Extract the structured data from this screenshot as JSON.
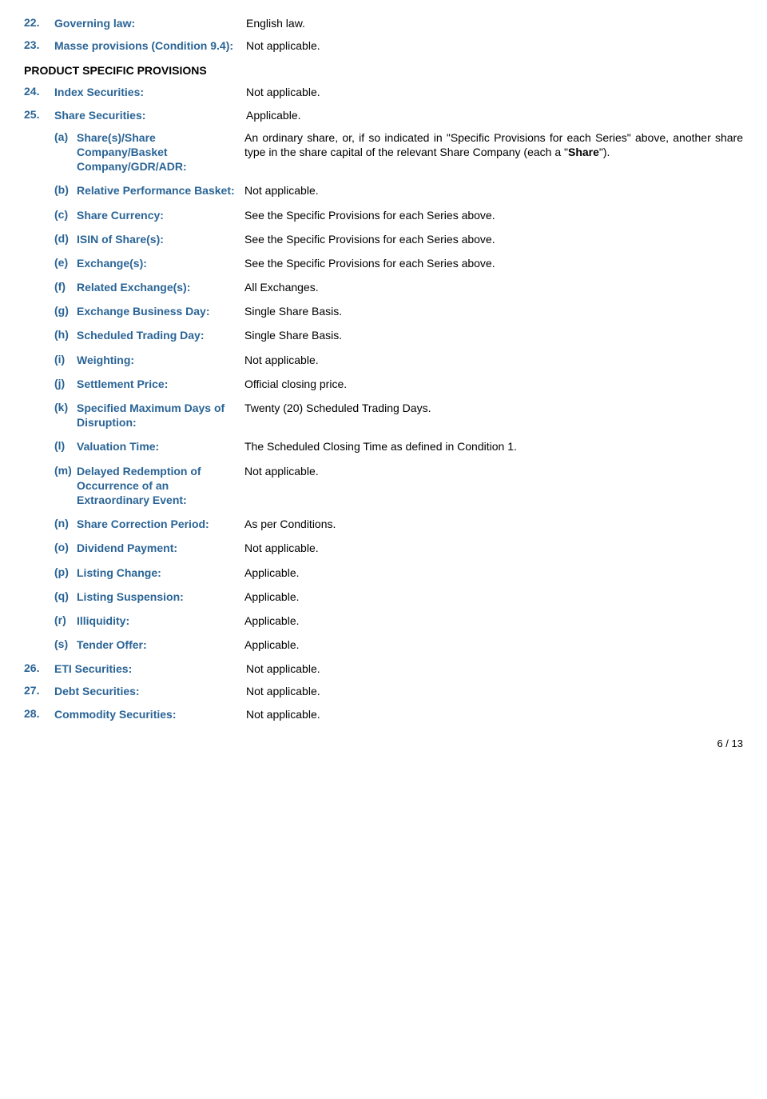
{
  "sectionHeader": "PRODUCT SPECIFIC PROVISIONS",
  "pageNumber": "6 / 13",
  "items": [
    {
      "num": "22.",
      "label": "Governing law:",
      "value": "English law."
    },
    {
      "num": "23.",
      "label": "Masse provisions (Condition 9.4):",
      "value": "Not applicable."
    }
  ],
  "items2": [
    {
      "num": "24.",
      "label": "Index Securities:",
      "value": "Not applicable."
    },
    {
      "num": "25.",
      "label": "Share Securities:",
      "value": "Applicable."
    }
  ],
  "subItems": [
    {
      "letter": "(a)",
      "label": "Share(s)/Share Company/Basket Company/GDR/ADR:",
      "valuePre": "An ordinary share, or, if so indicated in \"Specific Provisions for each Series\" above, another share type in the share capital of the relevant Share Company (each a \"",
      "valueBold": "Share",
      "valuePost": "\")."
    },
    {
      "letter": "(b)",
      "label": "Relative Performance Basket:",
      "value": "Not applicable."
    },
    {
      "letter": "(c)",
      "label": "Share Currency:",
      "value": "See the Specific Provisions for each Series above."
    },
    {
      "letter": "(d)",
      "label": "ISIN of Share(s):",
      "value": "See the Specific Provisions for each Series above."
    },
    {
      "letter": "(e)",
      "label": "Exchange(s):",
      "value": "See the Specific Provisions for each Series above."
    },
    {
      "letter": "(f)",
      "label": "Related Exchange(s):",
      "value": "All Exchanges."
    },
    {
      "letter": "(g)",
      "label": "Exchange Business Day:",
      "value": "Single Share Basis."
    },
    {
      "letter": "(h)",
      "label": "Scheduled Trading Day:",
      "value": "Single Share Basis."
    },
    {
      "letter": "(i)",
      "label": "Weighting:",
      "value": "Not applicable."
    },
    {
      "letter": "(j)",
      "label": "Settlement Price:",
      "value": "Official closing price."
    },
    {
      "letter": "(k)",
      "label": "Specified Maximum Days of Disruption:",
      "value": "Twenty (20) Scheduled Trading Days."
    },
    {
      "letter": "(l)",
      "label": "Valuation Time:",
      "value": "The Scheduled Closing Time as defined in Condition 1."
    },
    {
      "letter": "(m)",
      "label": "Delayed Redemption of Occurrence of an Extraordinary Event:",
      "value": "Not applicable."
    },
    {
      "letter": "(n)",
      "label": "Share Correction Period:",
      "value": "As per Conditions."
    },
    {
      "letter": "(o)",
      "label": "Dividend Payment:",
      "value": "Not applicable."
    },
    {
      "letter": "(p)",
      "label": "Listing Change:",
      "value": "Applicable."
    },
    {
      "letter": "(q)",
      "label": "Listing Suspension:",
      "value": "Applicable."
    },
    {
      "letter": "(r)",
      "label": "Illiquidity:",
      "value": "Applicable."
    },
    {
      "letter": "(s)",
      "label": "Tender Offer:",
      "value": "Applicable."
    }
  ],
  "items3": [
    {
      "num": "26.",
      "label": "ETI Securities:",
      "value": "Not applicable."
    },
    {
      "num": "27.",
      "label": "Debt Securities:",
      "value": "Not applicable."
    },
    {
      "num": "28.",
      "label": "Commodity Securities:",
      "value": "Not applicable."
    }
  ]
}
